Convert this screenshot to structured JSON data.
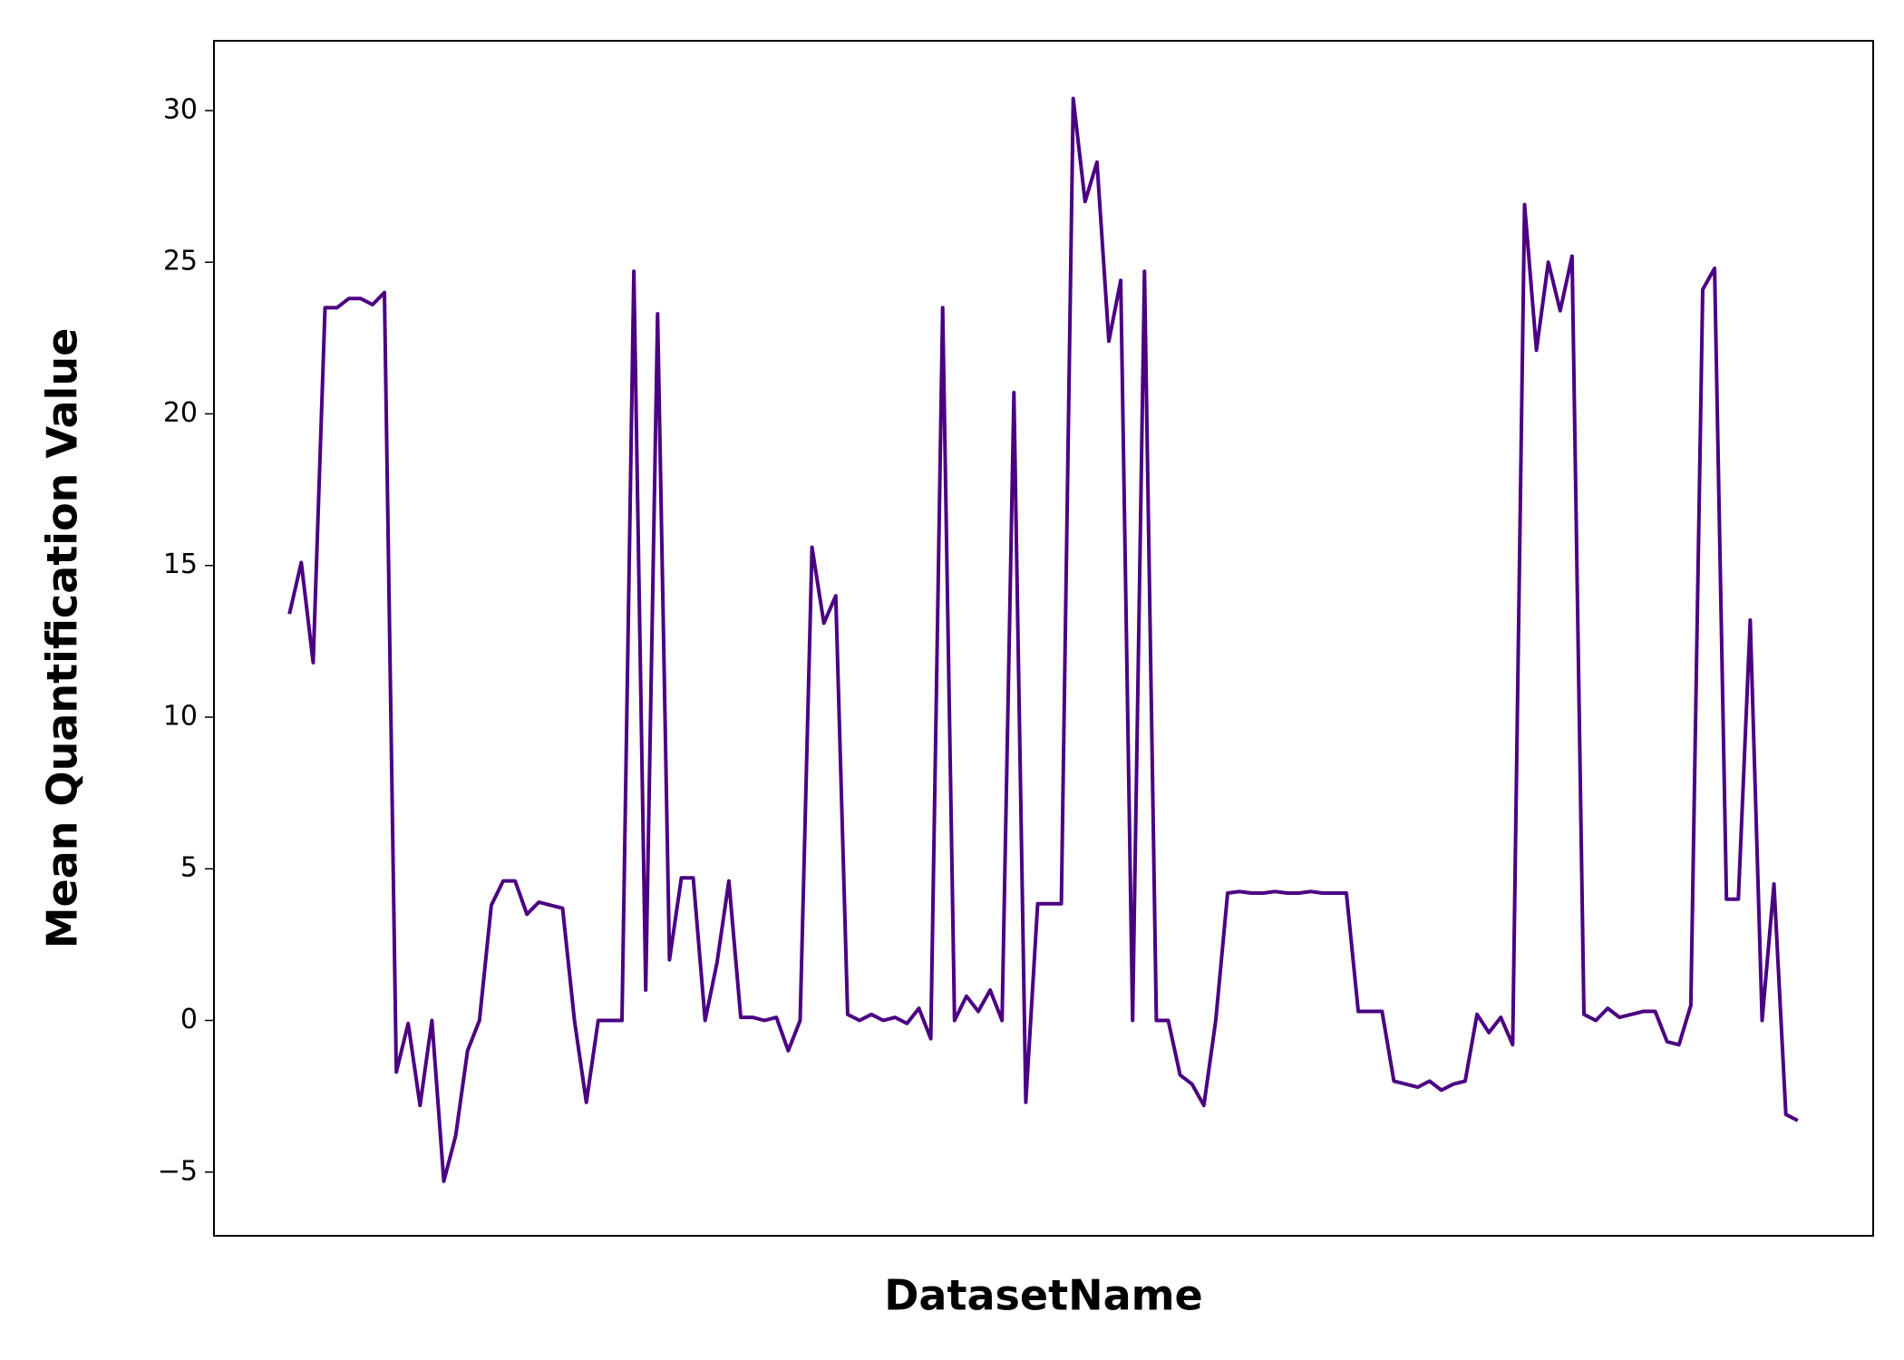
{
  "chart_data": {
    "type": "line",
    "xlabel": "DatasetName",
    "ylabel": "Mean Quantification Value",
    "color": "#4b0082",
    "categories": [
      null,
      null,
      null,
      null,
      null,
      null,
      null,
      null,
      null,
      null,
      null,
      null,
      null,
      null,
      null,
      null,
      null,
      null,
      null,
      null,
      null,
      null,
      null,
      null,
      null,
      null,
      null,
      null,
      null,
      null,
      null,
      null,
      null,
      null,
      null,
      null,
      null,
      null,
      null,
      null,
      null,
      null,
      null,
      null,
      null,
      null,
      null,
      null,
      null,
      null,
      null,
      null,
      null,
      null,
      null,
      null,
      null,
      null,
      null,
      null,
      null,
      null,
      null,
      null,
      null,
      null,
      null,
      null,
      null,
      null,
      null,
      null,
      null,
      null,
      null,
      null,
      null,
      null,
      null,
      null,
      null,
      null,
      null,
      null,
      null,
      null,
      null,
      null,
      null,
      null,
      null,
      null,
      null,
      null,
      null,
      null,
      null,
      null,
      null,
      null,
      null,
      null,
      null,
      null,
      null,
      null,
      null,
      null,
      null,
      null,
      null,
      null,
      null,
      null,
      null,
      null,
      null,
      null,
      null,
      null,
      null,
      null,
      null,
      null,
      null,
      null,
      null,
      null
    ],
    "values": [
      13.4,
      15.1,
      11.8,
      23.5,
      23.5,
      23.8,
      23.8,
      23.6,
      24.0,
      -1.7,
      -0.1,
      -2.8,
      0,
      -5.3,
      -3.8,
      -1.0,
      0,
      3.8,
      4.6,
      4.6,
      3.5,
      3.9,
      3.8,
      3.7,
      0,
      -2.7,
      0,
      0,
      0,
      24.7,
      1,
      23.3,
      2,
      4.7,
      4.7,
      0,
      1.9,
      4.6,
      0.1,
      0.1,
      0,
      0.1,
      -1,
      0,
      15.6,
      13.1,
      14,
      0.2,
      0,
      0.2,
      0,
      0.1,
      -0.1,
      0.4,
      -0.6,
      23.5,
      0,
      0.8,
      0.3,
      1,
      0,
      20.7,
      -2.7,
      3.85,
      3.85,
      3.85,
      30.4,
      27,
      28.3,
      22.4,
      24.4,
      0,
      24.7,
      0,
      0,
      -1.8,
      -2.1,
      -2.8,
      0,
      4.2,
      4.25,
      4.2,
      4.2,
      4.25,
      4.2,
      4.2,
      4.25,
      4.2,
      4.2,
      4.2,
      0.3,
      0.3,
      0.3,
      -2,
      -2.1,
      -2.2,
      -2.0,
      -2.3,
      -2.1,
      -2.0,
      0.2,
      -0.4,
      0.1,
      -0.8,
      26.9,
      22.1,
      25,
      23.4,
      25.2,
      0.2,
      0,
      0.4,
      0.1,
      0.2,
      0.3,
      0.3,
      -0.7,
      -0.8,
      0.5,
      24.1,
      24.8,
      4,
      4,
      13.2,
      0,
      4.5,
      -3.1,
      -3.3
    ],
    "ylim": [
      -7.1,
      32.3
    ],
    "yticks": [
      {
        "value": -5,
        "label": "−5"
      },
      0,
      5,
      10,
      15,
      20,
      25,
      30
    ],
    "grid": false
  }
}
